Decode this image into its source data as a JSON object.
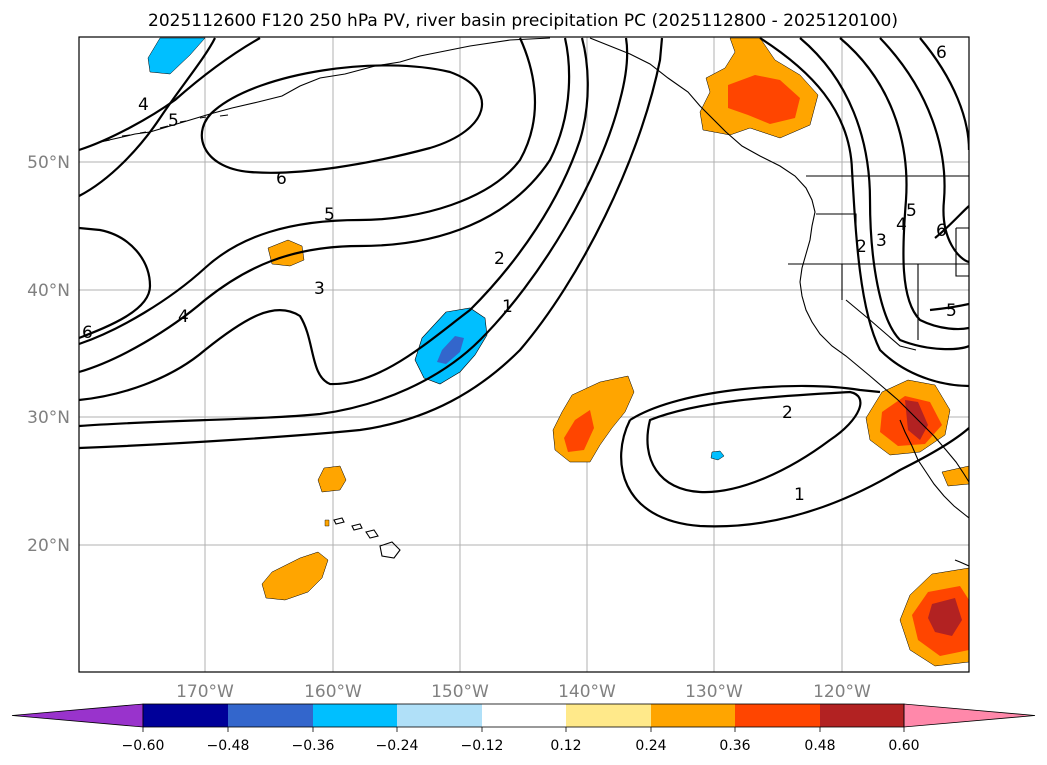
{
  "title": "2025112600 F120 250 hPa PV, river basin precipitation PC (2025112800 - 2025120100)",
  "lat_labels": [
    "50°N",
    "40°N",
    "30°N",
    "20°N"
  ],
  "lon_labels": [
    "170°W",
    "160°W",
    "150°W",
    "140°W",
    "130°W",
    "120°W"
  ],
  "colorbar": {
    "colors": [
      "#9933cc",
      "#000099",
      "#3366cc",
      "#00bfff",
      "#b0e0f8",
      "#ffffff",
      "#ffe98a",
      "#ffa500",
      "#ff4500",
      "#b22222",
      "#ff88aa"
    ],
    "tick_labels": [
      "−0.60",
      "−0.48",
      "−0.36",
      "−0.24",
      "−0.12",
      "0.12",
      "0.24",
      "0.36",
      "0.48",
      "0.60"
    ]
  },
  "contour_labels": [
    "6",
    "5",
    "4",
    "3",
    "2",
    "1",
    "2",
    "1",
    "6",
    "5",
    "4",
    "3",
    "2",
    "5",
    "6",
    "4",
    "5",
    "6"
  ],
  "colors": {
    "orange": "#ffa500",
    "orange_red": "#ff4500",
    "firebrick": "#b22222",
    "light_blue": "#00bfff",
    "blue": "#3366cc"
  }
}
